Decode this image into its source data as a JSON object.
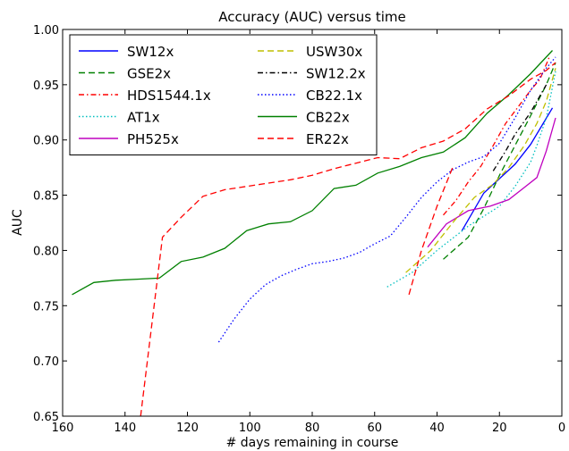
{
  "chart_data": {
    "type": "line",
    "title": "Accuracy (AUC) versus time",
    "xlabel": "# days remaining in course",
    "ylabel": "AUC",
    "xlim": [
      160,
      0
    ],
    "ylim": [
      0.65,
      1.0
    ],
    "x_reversed": true,
    "x_ticks": [
      "160",
      "140",
      "120",
      "100",
      "80",
      "60",
      "40",
      "20",
      "0"
    ],
    "y_ticks": [
      "0.65",
      "0.70",
      "0.75",
      "0.80",
      "0.85",
      "0.90",
      "0.95",
      "1.00"
    ],
    "legend_placement": "top-left",
    "legend_columns": 2,
    "grid": false,
    "series": [
      {
        "name": "SW12x",
        "color": "#0000ff",
        "dash": "solid",
        "x": [
          32,
          25,
          20,
          15,
          10,
          3
        ],
        "y": [
          0.818,
          0.852,
          0.865,
          0.878,
          0.896,
          0.929
        ]
      },
      {
        "name": "GSE2x",
        "color": "#008000",
        "dash": "dashed",
        "x": [
          38,
          30,
          25,
          20,
          15,
          10,
          5,
          2
        ],
        "y": [
          0.792,
          0.812,
          0.838,
          0.868,
          0.895,
          0.922,
          0.95,
          0.97
        ]
      },
      {
        "name": "HDS1544.1x",
        "color": "#ff0000",
        "dash": "dashdot",
        "x": [
          38,
          34,
          30,
          26,
          22,
          18,
          14,
          10,
          7,
          4
        ],
        "y": [
          0.832,
          0.845,
          0.862,
          0.876,
          0.895,
          0.915,
          0.93,
          0.945,
          0.955,
          0.975
        ]
      },
      {
        "name": "AT1x",
        "color": "#00bfbf",
        "dash": "dotted",
        "x": [
          56,
          48,
          40,
          30,
          20,
          15,
          10,
          8,
          5,
          2
        ],
        "y": [
          0.767,
          0.78,
          0.8,
          0.822,
          0.84,
          0.858,
          0.88,
          0.895,
          0.92,
          0.962
        ]
      },
      {
        "name": "PH525x",
        "color": "#bf00bf",
        "dash": "solid",
        "x": [
          43,
          37,
          30,
          23,
          17,
          12,
          8,
          5,
          2
        ],
        "y": [
          0.803,
          0.824,
          0.836,
          0.84,
          0.846,
          0.857,
          0.866,
          0.89,
          0.92
        ]
      },
      {
        "name": "USW30x",
        "color": "#bfbf00",
        "dash": "dashed",
        "x": [
          50,
          42,
          35,
          28,
          22,
          17,
          12,
          8,
          5,
          2
        ],
        "y": [
          0.78,
          0.8,
          0.825,
          0.848,
          0.86,
          0.875,
          0.895,
          0.915,
          0.935,
          0.965
        ]
      },
      {
        "name": "SW12.2x",
        "color": "#000000",
        "dash": "dashdot",
        "x": [
          22,
          18,
          15,
          10,
          5
        ],
        "y": [
          0.872,
          0.89,
          0.905,
          0.925,
          0.95
        ]
      },
      {
        "name": "CB22.1x",
        "color": "#0000ff",
        "dash": "dotted",
        "x": [
          110,
          105,
          100,
          95,
          90,
          85,
          80,
          75,
          70,
          65,
          60,
          55,
          50,
          45,
          40,
          35,
          30,
          25,
          20,
          15,
          10,
          5,
          2
        ],
        "y": [
          0.717,
          0.738,
          0.756,
          0.769,
          0.777,
          0.783,
          0.788,
          0.79,
          0.793,
          0.798,
          0.806,
          0.813,
          0.83,
          0.848,
          0.862,
          0.873,
          0.88,
          0.885,
          0.897,
          0.92,
          0.945,
          0.965,
          0.975
        ]
      },
      {
        "name": "CB22x",
        "color": "#008000",
        "dash": "solid",
        "x": [
          157,
          150,
          143,
          136,
          129,
          122,
          115,
          108,
          101,
          94,
          87,
          80,
          73,
          66,
          59,
          52,
          45,
          38,
          31,
          24,
          17,
          10,
          3
        ],
        "y": [
          0.76,
          0.771,
          0.773,
          0.774,
          0.775,
          0.79,
          0.794,
          0.802,
          0.818,
          0.824,
          0.826,
          0.836,
          0.856,
          0.859,
          0.87,
          0.876,
          0.884,
          0.889,
          0.902,
          0.924,
          0.941,
          0.96,
          0.981
        ]
      },
      {
        "name": "ER22x",
        "color": "#ff0000",
        "dash": "dashed",
        "x": [
          135,
          128,
          122,
          115,
          108,
          101,
          94,
          87,
          80,
          73,
          66,
          59,
          52,
          45,
          38,
          31,
          24,
          17,
          10,
          5,
          2
        ],
        "y": [
          0.65,
          0.812,
          0.83,
          0.849,
          0.855,
          0.858,
          0.861,
          0.864,
          0.868,
          0.874,
          0.879,
          0.884,
          0.883,
          0.893,
          0.899,
          0.91,
          0.928,
          0.94,
          0.955,
          0.963,
          0.97
        ]
      },
      {
        "name": "",
        "color": "#ff0000",
        "dash": "dashed",
        "x": [
          49,
          45,
          40,
          35
        ],
        "y": [
          0.76,
          0.8,
          0.84,
          0.875
        ]
      }
    ]
  }
}
